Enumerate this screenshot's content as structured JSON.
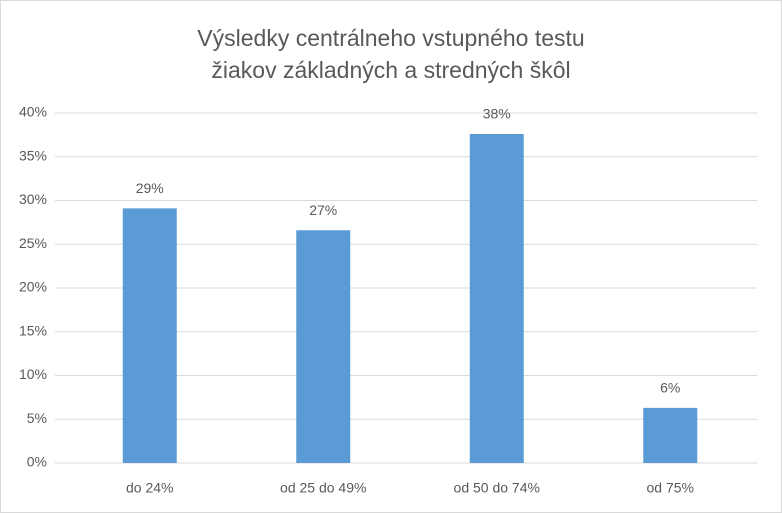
{
  "chart_data": {
    "type": "bar",
    "title": [
      "Výsledky centrálneho vstupného testu",
      "žiakov základných a stredných škôl"
    ],
    "categories": [
      "do 24%",
      "od 25 do 49%",
      "od 50 do 74%",
      "od 75%"
    ],
    "values": [
      29.1,
      26.6,
      37.6,
      6.3
    ],
    "value_labels": [
      "29%",
      "27%",
      "38%",
      "6%"
    ],
    "color": "#5b9bd5",
    "ylim": [
      0,
      40
    ],
    "yticks": [
      {
        "value": 0,
        "label": "0%"
      },
      {
        "value": 5,
        "label": "5%"
      },
      {
        "value": 10,
        "label": "10%"
      },
      {
        "value": 15,
        "label": "15%"
      },
      {
        "value": 20,
        "label": "20%"
      },
      {
        "value": 25,
        "label": "25%"
      },
      {
        "value": 30,
        "label": "30%"
      },
      {
        "value": 35,
        "label": "35%"
      },
      {
        "value": 40,
        "label": "40%"
      }
    ],
    "grid": true
  }
}
